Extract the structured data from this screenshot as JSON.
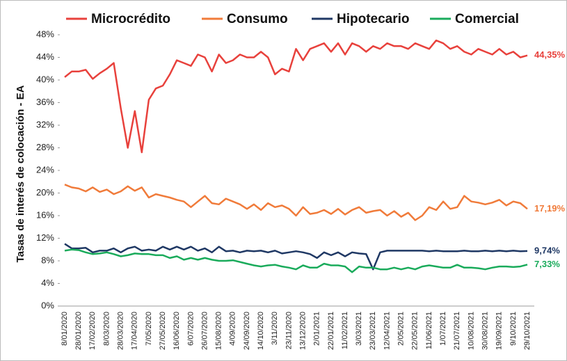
{
  "chart_data": {
    "type": "line",
    "ylabel": "Tasas de interés de colocación - EA",
    "categories": [
      "8/01/2020",
      null,
      "28/01/2020",
      null,
      "17/02/2020",
      null,
      "8/03/2020",
      null,
      "28/03/2020",
      null,
      "17/04/2020",
      null,
      "7/05/2020",
      null,
      "27/05/2020",
      null,
      "16/06/2020",
      null,
      "6/07/2020",
      null,
      "26/07/2020",
      null,
      "15/08/2020",
      null,
      "4/09/2020",
      null,
      "24/09/2020",
      null,
      "14/10/2020",
      null,
      "3/11/2020",
      null,
      "23/11/2020",
      null,
      "13/12/2020",
      null,
      "2/01/2021",
      null,
      "22/01/2021",
      null,
      "11/02/2021",
      null,
      "3/03/2021",
      null,
      "23/03/2021",
      null,
      "12/04/2021",
      null,
      "2/05/2021",
      null,
      "22/05/2021",
      null,
      "11/06/2021",
      null,
      "1/07/2021",
      null,
      "21/07/2021",
      null,
      "10/08/2021",
      null,
      "30/08/2021",
      null,
      "19/09/2021",
      null,
      "9/10/2021",
      null,
      "29/10/2021"
    ],
    "series": [
      {
        "name": "Microcrédito",
        "color": "#e8413c",
        "last_label": "44,35%",
        "values": [
          40.5,
          41.5,
          41.5,
          41.8,
          40.2,
          41.2,
          42,
          43,
          35,
          28,
          34.5,
          27.2,
          36.5,
          38.5,
          39,
          41,
          43.5,
          43,
          42.5,
          44.5,
          44,
          41.5,
          44.5,
          43,
          43.5,
          44.5,
          44,
          44,
          45,
          44,
          41,
          42,
          41.5,
          45.5,
          43.5,
          45.5,
          46,
          46.5,
          45,
          46.5,
          44.5,
          46.5,
          46,
          45,
          46,
          45.5,
          46.5,
          46,
          46,
          45.5,
          46.5,
          46,
          45.5,
          47,
          46.5,
          45.5,
          46,
          45,
          44.5,
          45.5,
          45,
          44.5,
          45.5,
          44.5,
          45,
          44,
          44.35
        ]
      },
      {
        "name": "Consumo",
        "color": "#f07b3a",
        "last_label": "17,19%",
        "values": [
          21.5,
          21,
          20.8,
          20.3,
          21,
          20.2,
          20.6,
          19.8,
          20.3,
          21.2,
          20.4,
          21,
          19.2,
          19.8,
          19.5,
          19.2,
          18.8,
          18.5,
          17.5,
          18.5,
          19.5,
          18.2,
          18,
          19,
          18.5,
          18,
          17.2,
          18,
          17,
          18.2,
          17.5,
          17.8,
          17.2,
          16,
          17.5,
          16.3,
          16.5,
          17,
          16.3,
          17.2,
          16.2,
          17,
          17.5,
          16.5,
          16.8,
          17,
          16,
          16.8,
          15.8,
          16.5,
          15.2,
          16,
          17.5,
          17,
          18.5,
          17.2,
          17.5,
          19.5,
          18.5,
          18.3,
          18,
          18.3,
          18.8,
          17.8,
          18.5,
          18.2,
          17.19
        ]
      },
      {
        "name": "Hipotecario",
        "color": "#1f3864",
        "last_label": "9,74%",
        "values": [
          11,
          10.2,
          10.2,
          10.3,
          9.5,
          9.8,
          9.8,
          10.2,
          9.5,
          10.2,
          10.5,
          9.8,
          10,
          9.8,
          10.5,
          10,
          10.5,
          10,
          10.5,
          9.8,
          10.2,
          9.5,
          10.5,
          9.7,
          9.8,
          9.5,
          9.8,
          9.7,
          9.8,
          9.5,
          9.8,
          9.3,
          9.5,
          9.7,
          9.5,
          9.2,
          8.5,
          9.5,
          9,
          9.5,
          8.8,
          9.5,
          9.3,
          9.2,
          6.5,
          9.5,
          9.8,
          9.8,
          9.8,
          9.8,
          9.8,
          9.8,
          9.7,
          9.8,
          9.7,
          9.7,
          9.7,
          9.8,
          9.7,
          9.7,
          9.8,
          9.7,
          9.8,
          9.7,
          9.8,
          9.7,
          9.74
        ]
      },
      {
        "name": "Comercial",
        "color": "#1aab5b",
        "last_label": "7,33%",
        "values": [
          9.8,
          10,
          9.9,
          9.5,
          9.2,
          9.3,
          9.5,
          9.2,
          8.8,
          9,
          9.3,
          9.2,
          9.2,
          9,
          9,
          8.5,
          8.8,
          8.2,
          8.5,
          8.2,
          8.5,
          8.2,
          8,
          8,
          8.1,
          7.8,
          7.5,
          7.2,
          7,
          7.2,
          7.3,
          7,
          6.8,
          6.5,
          7.2,
          6.8,
          6.8,
          7.5,
          7.2,
          7.2,
          7,
          6,
          7,
          6.8,
          6.8,
          6.5,
          6.5,
          6.8,
          6.5,
          6.8,
          6.5,
          7,
          7.2,
          7,
          6.8,
          6.8,
          7.3,
          6.8,
          6.8,
          6.7,
          6.5,
          6.8,
          7,
          7,
          6.9,
          7,
          7.33
        ]
      }
    ],
    "ylim": [
      0,
      48
    ],
    "yticks": [
      {
        "value": 0,
        "label": "0%"
      },
      {
        "value": 4,
        "label": "4%"
      },
      {
        "value": 8,
        "label": "8%"
      },
      {
        "value": 12,
        "label": "12%"
      },
      {
        "value": 16,
        "label": "16%"
      },
      {
        "value": 20,
        "label": "20%"
      },
      {
        "value": 24,
        "label": "24%"
      },
      {
        "value": 28,
        "label": "28%"
      },
      {
        "value": 32,
        "label": "32%"
      },
      {
        "value": 36,
        "label": "36%"
      },
      {
        "value": 40,
        "label": "40%"
      },
      {
        "value": 44,
        "label": "44%"
      },
      {
        "value": 48,
        "label": "48%"
      }
    ],
    "legend": "top",
    "grid": false
  }
}
